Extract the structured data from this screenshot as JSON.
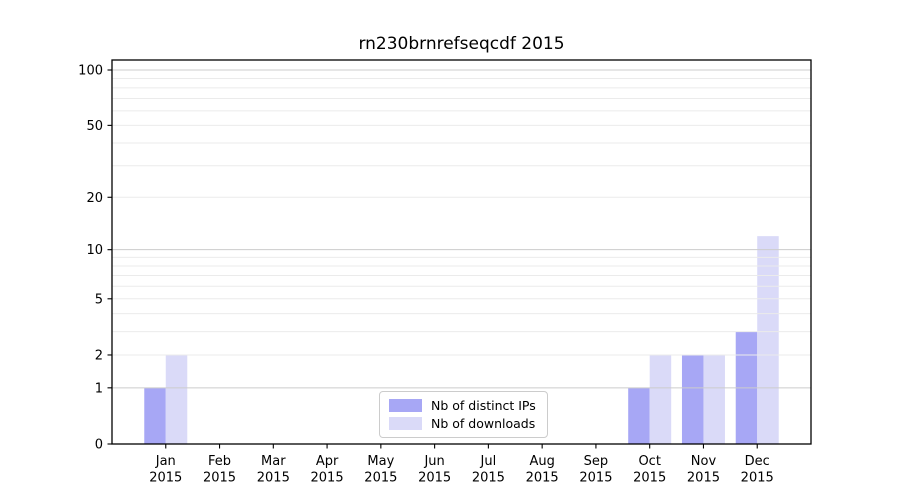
{
  "title": "rn230brnrefseqcdf 2015",
  "chart_data": {
    "type": "bar",
    "title": "rn230brnrefseqcdf 2015",
    "categories": [
      "Jan 2015",
      "Feb 2015",
      "Mar 2015",
      "Apr 2015",
      "May 2015",
      "Jun 2015",
      "Jul 2015",
      "Aug 2015",
      "Sep 2015",
      "Oct 2015",
      "Nov 2015",
      "Dec 2015"
    ],
    "series": [
      {
        "name": "Nb of distinct IPs",
        "color": "#a7a7f5",
        "values": [
          1,
          0,
          0,
          0,
          0,
          0,
          0,
          0,
          0,
          1,
          2,
          3
        ]
      },
      {
        "name": "Nb of downloads",
        "color": "#dadaf8",
        "values": [
          2,
          0,
          0,
          0,
          0,
          0,
          0,
          0,
          0,
          2,
          2,
          12
        ]
      }
    ],
    "xlabel": "",
    "ylabel": "",
    "y_scale": "log1p",
    "y_ticks": [
      0,
      1,
      2,
      5,
      10,
      20,
      50,
      100
    ],
    "ylim": [
      0,
      113
    ],
    "grid": {
      "major": [
        1,
        10,
        100
      ],
      "minor": [
        2,
        3,
        4,
        5,
        6,
        7,
        8,
        9,
        20,
        30,
        40,
        50,
        60,
        70,
        80,
        90
      ]
    },
    "legend_position": "bottom-center"
  },
  "colors": {
    "background": "#ffffff",
    "spine": "#000000",
    "grid_major": "#cccccc",
    "grid_minor": "#ebebeb",
    "tick_text": "#000000",
    "legend_border": "#cccccc"
  }
}
